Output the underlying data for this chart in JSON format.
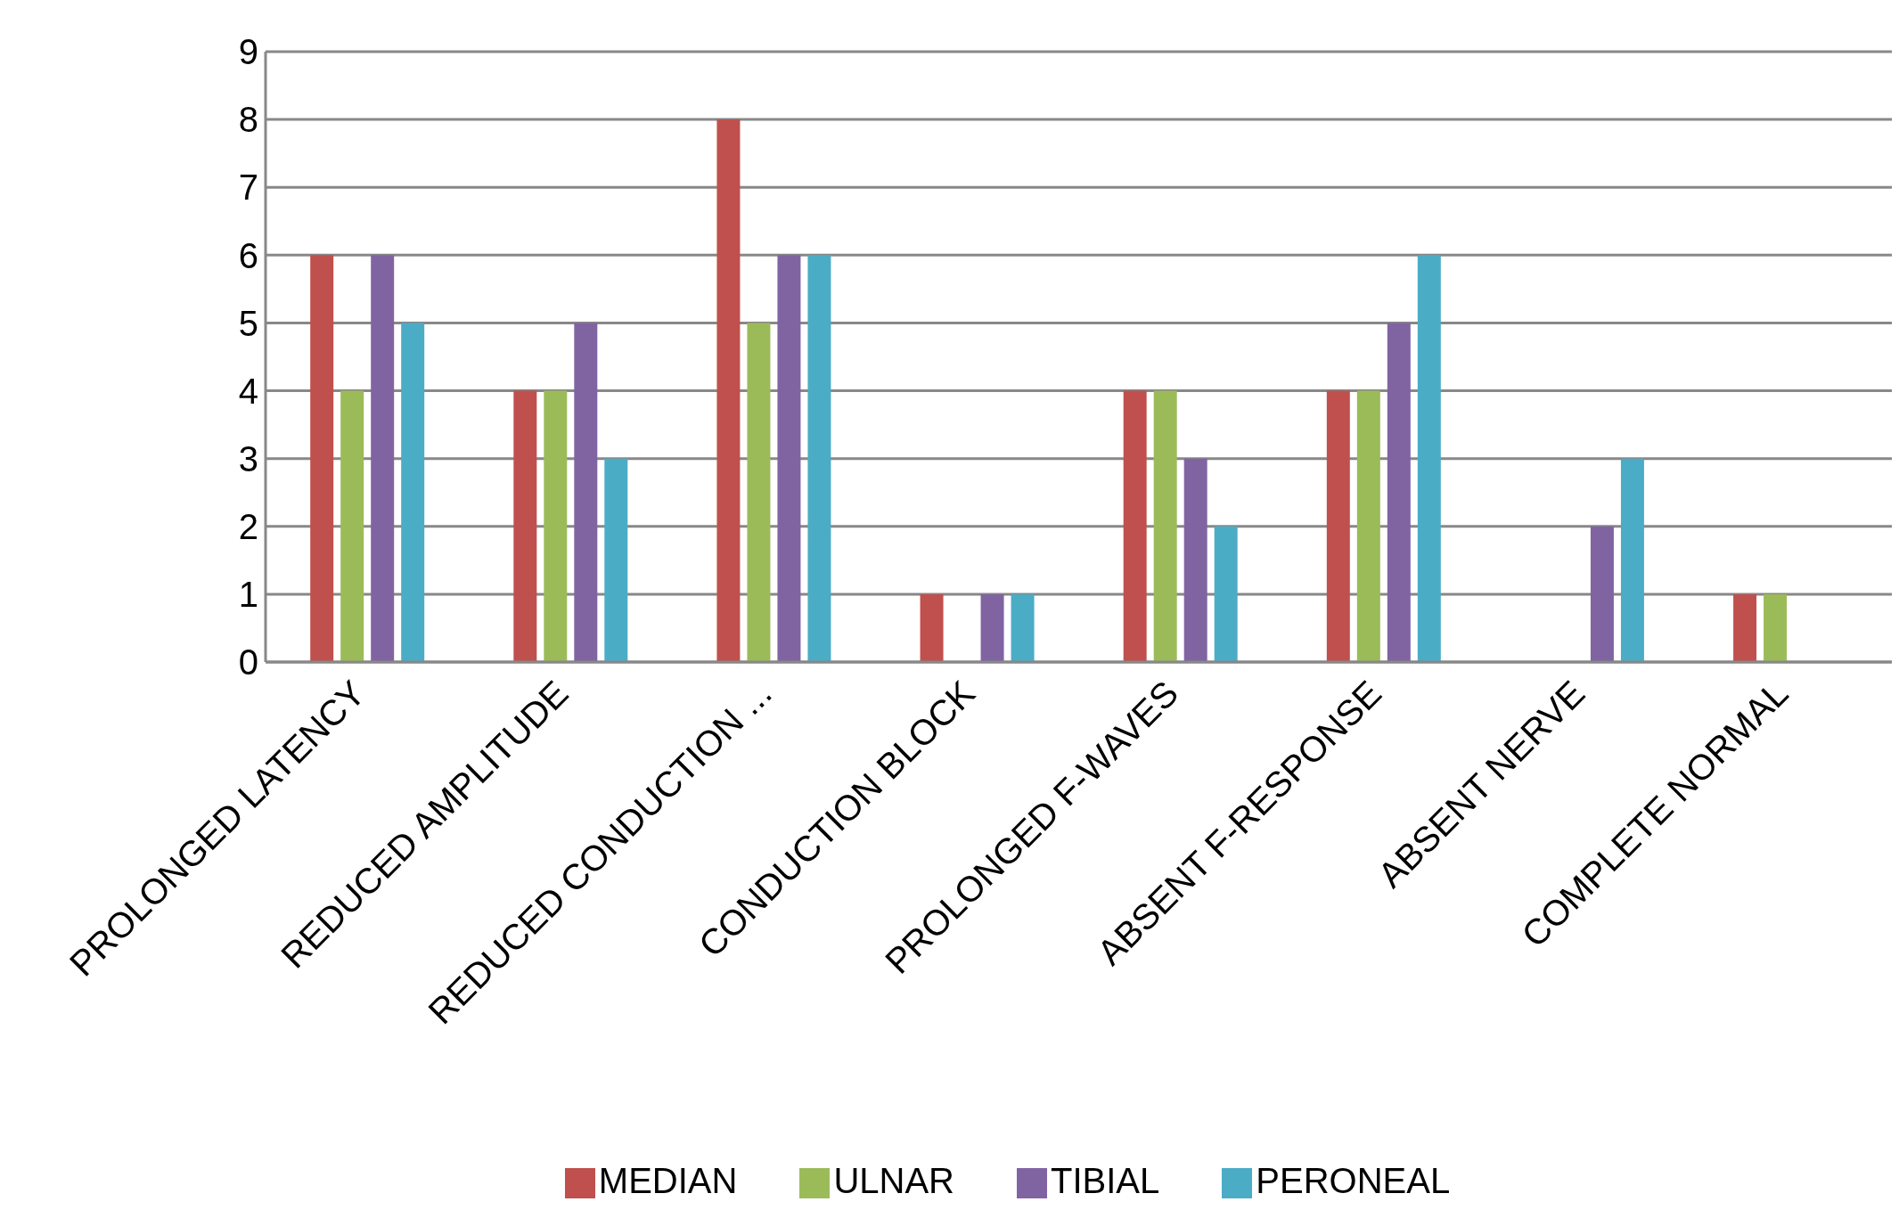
{
  "chart_data": {
    "type": "bar",
    "categories": [
      "PROLONGED LATENCY",
      "REDUCED AMPLITUDE",
      "REDUCED CONDUCTION ...",
      "CONDUCTION BLOCK",
      "PROLONGED F-WAVES",
      "ABSENT F-RESPONSE",
      "ABSENT NERVE",
      "COMPLETE NORMAL"
    ],
    "series": [
      {
        "name": "MEDIAN",
        "color": "#c0504d",
        "values": [
          6,
          4,
          8,
          1,
          4,
          4,
          0,
          1
        ]
      },
      {
        "name": "ULNAR",
        "color": "#9bbb59",
        "values": [
          4,
          4,
          5,
          0,
          4,
          4,
          0,
          1
        ]
      },
      {
        "name": "TIBIAL",
        "color": "#8064a2",
        "values": [
          6,
          5,
          6,
          1,
          3,
          5,
          2,
          0
        ]
      },
      {
        "name": "PERONEAL",
        "color": "#4bacc6",
        "values": [
          5,
          3,
          6,
          1,
          2,
          6,
          3,
          0
        ]
      }
    ],
    "ylim": [
      0,
      9
    ],
    "yticks": [
      0,
      1,
      2,
      3,
      4,
      5,
      6,
      7,
      8,
      9
    ],
    "grid": "y",
    "legend": "bottom"
  }
}
